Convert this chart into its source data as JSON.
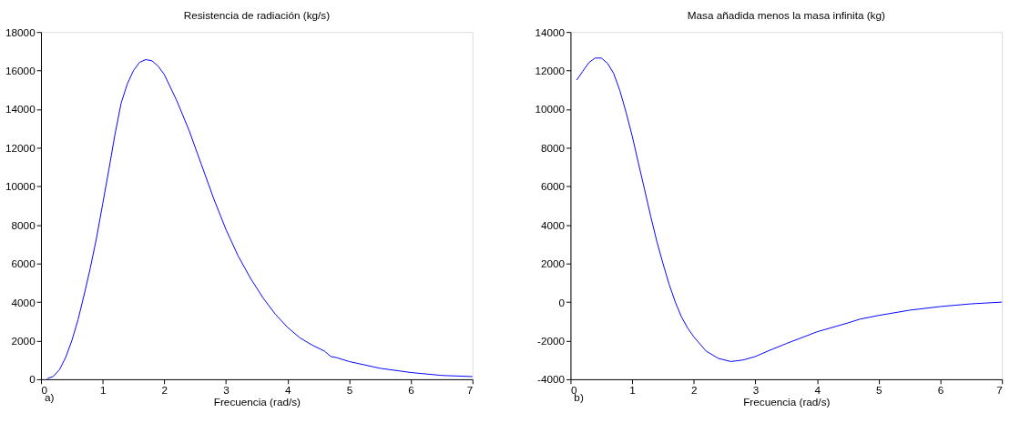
{
  "chart_data": [
    {
      "type": "line",
      "title": "Resistencia de radiación (kg/s)",
      "xlabel": "Frecuencia (rad/s)",
      "annotations": [
        "a)"
      ],
      "x": [
        0.1,
        0.2,
        0.3,
        0.4,
        0.5,
        0.6,
        0.7,
        0.8,
        0.9,
        1.0,
        1.1,
        1.2,
        1.3,
        1.4,
        1.5,
        1.6,
        1.7,
        1.8,
        1.9,
        2.0,
        2.2,
        2.4,
        2.6,
        2.8,
        3.0,
        3.2,
        3.4,
        3.6,
        3.8,
        4.0,
        4.2,
        4.4,
        4.6,
        4.7,
        4.8,
        5.0,
        5.5,
        6.0,
        6.5,
        7.0
      ],
      "series": [
        {
          "color": "#0000ff",
          "values": [
            30,
            150,
            500,
            1130,
            2000,
            3080,
            4380,
            5770,
            7310,
            9080,
            10850,
            12690,
            14310,
            15310,
            16000,
            16430,
            16570,
            16510,
            16230,
            15800,
            14460,
            12920,
            11150,
            9380,
            7770,
            6380,
            5230,
            4230,
            3380,
            2690,
            2150,
            1770,
            1460,
            1180,
            1120,
            920,
            570,
            350,
            200,
            140
          ]
        }
      ],
      "xlim": [
        0,
        7
      ],
      "ylim": [
        0,
        18000
      ],
      "xticks": [
        0,
        1,
        2,
        3,
        4,
        5,
        6,
        7
      ],
      "yticks": [
        0,
        2000,
        4000,
        6000,
        8000,
        10000,
        12000,
        14000,
        16000,
        18000
      ],
      "grid": false,
      "line_style": "solid",
      "marker": "none"
    },
    {
      "type": "line",
      "title": "Masa añadida menos la masa infinita (kg)",
      "xlabel": "Frecuencia (rad/s)",
      "annotations": [
        "b)"
      ],
      "x": [
        0.1,
        0.2,
        0.3,
        0.4,
        0.5,
        0.6,
        0.7,
        0.8,
        0.9,
        1.0,
        1.1,
        1.2,
        1.3,
        1.4,
        1.5,
        1.6,
        1.7,
        1.8,
        1.9,
        2.0,
        2.2,
        2.4,
        2.6,
        2.8,
        3.0,
        3.2,
        3.5,
        4.0,
        4.5,
        4.7,
        5.0,
        5.5,
        6.0,
        6.5,
        7.0
      ],
      "series": [
        {
          "color": "#0000ff",
          "values": [
            11510,
            11970,
            12420,
            12650,
            12650,
            12380,
            11850,
            10970,
            9850,
            8620,
            7230,
            5850,
            4460,
            3150,
            2000,
            920,
            0,
            -770,
            -1340,
            -1800,
            -2540,
            -2920,
            -3080,
            -3000,
            -2820,
            -2540,
            -2150,
            -1540,
            -1080,
            -880,
            -690,
            -420,
            -230,
            -90,
            0
          ]
        }
      ],
      "xlim": [
        0,
        7
      ],
      "ylim": [
        -4000,
        14000
      ],
      "xticks": [
        0,
        1,
        2,
        3,
        4,
        5,
        6,
        7
      ],
      "yticks": [
        -4000,
        -2000,
        0,
        2000,
        4000,
        6000,
        8000,
        10000,
        12000,
        14000
      ],
      "grid": false,
      "line_style": "solid",
      "marker": "none"
    }
  ]
}
